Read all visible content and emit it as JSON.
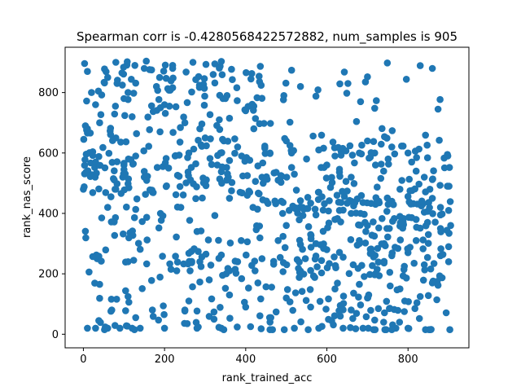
{
  "chart_data": {
    "type": "scatter",
    "title": "Spearman corr is -0.4280568422572882, num_samples is 905",
    "xlabel": "rank_trained_acc",
    "ylabel": "rank_nas_score",
    "xlim": [
      -45,
      950
    ],
    "ylim": [
      -45,
      950
    ],
    "xticks": [
      0,
      200,
      400,
      600,
      800
    ],
    "yticks": [
      0,
      200,
      400,
      600,
      800
    ],
    "grid": false,
    "point_color": "#1f77b4",
    "point_count": 905,
    "spearman_corr": -0.4280568422572882,
    "sample_points": [
      [
        10,
        870
      ],
      [
        20,
        800
      ],
      [
        30,
        760
      ],
      [
        40,
        700
      ],
      [
        60,
        850
      ],
      [
        80,
        900
      ],
      [
        100,
        780
      ],
      [
        120,
        720
      ],
      [
        150,
        880
      ],
      [
        180,
        820
      ],
      [
        200,
        760
      ],
      [
        220,
        890
      ],
      [
        250,
        700
      ],
      [
        270,
        900
      ],
      [
        300,
        650
      ],
      [
        320,
        860
      ],
      [
        350,
        780
      ],
      [
        380,
        620
      ],
      [
        400,
        740
      ],
      [
        420,
        680
      ],
      [
        10,
        680
      ],
      [
        30,
        570
      ],
      [
        60,
        420
      ],
      [
        80,
        480
      ],
      [
        100,
        560
      ],
      [
        120,
        330
      ],
      [
        150,
        520
      ],
      [
        170,
        470
      ],
      [
        190,
        400
      ],
      [
        210,
        550
      ],
      [
        240,
        420
      ],
      [
        260,
        600
      ],
      [
        280,
        340
      ],
      [
        300,
        500
      ],
      [
        330,
        560
      ],
      [
        360,
        450
      ],
      [
        390,
        590
      ],
      [
        410,
        470
      ],
      [
        440,
        520
      ],
      [
        460,
        600
      ],
      [
        480,
        510
      ],
      [
        500,
        640
      ],
      [
        520,
        530
      ],
      [
        550,
        580
      ],
      [
        580,
        610
      ],
      [
        600,
        560
      ],
      [
        620,
        590
      ],
      [
        640,
        610
      ],
      [
        660,
        520
      ],
      [
        680,
        600
      ],
      [
        700,
        640
      ],
      [
        720,
        560
      ],
      [
        740,
        540
      ],
      [
        760,
        620
      ],
      [
        780,
        480
      ],
      [
        800,
        600
      ],
      [
        820,
        540
      ],
      [
        840,
        520
      ],
      [
        860,
        450
      ],
      [
        880,
        420
      ],
      [
        900,
        410
      ],
      [
        10,
        20
      ],
      [
        30,
        20
      ],
      [
        40,
        165
      ],
      [
        60,
        20
      ],
      [
        70,
        80
      ],
      [
        90,
        20
      ],
      [
        110,
        240
      ],
      [
        120,
        20
      ],
      [
        140,
        20
      ],
      [
        170,
        80
      ],
      [
        200,
        20
      ],
      [
        230,
        210
      ],
      [
        260,
        110
      ],
      [
        280,
        20
      ],
      [
        310,
        180
      ],
      [
        340,
        20
      ],
      [
        360,
        130
      ],
      [
        380,
        240
      ],
      [
        400,
        90
      ],
      [
        430,
        170
      ],
      [
        460,
        40
      ],
      [
        480,
        310
      ],
      [
        500,
        120
      ],
      [
        520,
        20
      ],
      [
        540,
        200
      ],
      [
        560,
        90
      ],
      [
        580,
        20
      ],
      [
        600,
        280
      ],
      [
        620,
        150
      ],
      [
        640,
        20
      ],
      [
        660,
        80
      ],
      [
        680,
        300
      ],
      [
        700,
        120
      ],
      [
        720,
        200
      ],
      [
        740,
        40
      ],
      [
        760,
        260
      ],
      [
        780,
        150
      ],
      [
        800,
        20
      ],
      [
        820,
        310
      ],
      [
        840,
        230
      ],
      [
        860,
        170
      ],
      [
        880,
        260
      ],
      [
        900,
        290
      ],
      [
        440,
        250
      ],
      [
        560,
        330
      ],
      [
        620,
        380
      ],
      [
        700,
        360
      ],
      [
        780,
        390
      ],
      [
        850,
        330
      ],
      [
        500,
        360
      ],
      [
        540,
        420
      ],
      [
        580,
        470
      ],
      [
        660,
        440
      ],
      [
        720,
        430
      ],
      [
        760,
        440
      ],
      [
        820,
        380
      ],
      [
        880,
        350
      ],
      [
        900,
        240
      ],
      [
        250,
        80
      ]
    ]
  }
}
